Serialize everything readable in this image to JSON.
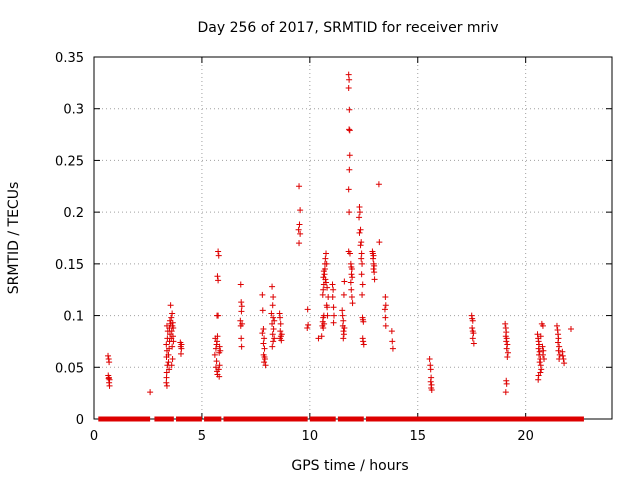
{
  "chart_data": {
    "type": "scatter",
    "title": "Day 256 of 2017, SRMTID for receiver mriv",
    "xlabel": "GPS time / hours",
    "ylabel": "SRMTID / TECUs",
    "xlim": [
      0,
      24
    ],
    "ylim": [
      0,
      0.35
    ],
    "xticks": [
      0,
      5,
      10,
      15,
      20
    ],
    "xtick_labels": [
      "0",
      "5",
      "10",
      "15",
      "20"
    ],
    "yticks": [
      0,
      0.05,
      0.1,
      0.15,
      0.2,
      0.25,
      0.3,
      0.35
    ],
    "ytick_labels": [
      "0",
      "0.05",
      "0.1",
      "0.15",
      "0.2",
      "0.25",
      "0.3",
      "0.35"
    ],
    "grid": true,
    "marker": "+",
    "color": "#dd0000",
    "zero_baseline_segments": [
      [
        0.2,
        2.6
      ],
      [
        2.8,
        3.7
      ],
      [
        3.8,
        5.0
      ],
      [
        5.1,
        5.9
      ],
      [
        6.0,
        9.9
      ],
      [
        10.0,
        11.2
      ],
      [
        11.3,
        12.5
      ],
      [
        12.6,
        22.7
      ]
    ],
    "points": [
      [
        0.65,
        0.061
      ],
      [
        0.68,
        0.058
      ],
      [
        0.7,
        0.055
      ],
      [
        0.66,
        0.042
      ],
      [
        0.69,
        0.04
      ],
      [
        0.72,
        0.038
      ],
      [
        0.7,
        0.035
      ],
      [
        0.72,
        0.032
      ],
      [
        0.68,
        0.039
      ],
      [
        2.6,
        0.026
      ],
      [
        3.35,
        0.035
      ],
      [
        3.38,
        0.032
      ],
      [
        3.36,
        0.04
      ],
      [
        3.37,
        0.045
      ],
      [
        3.4,
        0.052
      ],
      [
        3.36,
        0.06
      ],
      [
        3.38,
        0.066
      ],
      [
        3.35,
        0.072
      ],
      [
        3.4,
        0.078
      ],
      [
        3.42,
        0.085
      ],
      [
        3.38,
        0.09
      ],
      [
        3.45,
        0.062
      ],
      [
        3.48,
        0.068
      ],
      [
        3.5,
        0.075
      ],
      [
        3.52,
        0.082
      ],
      [
        3.5,
        0.088
      ],
      [
        3.55,
        0.092
      ],
      [
        3.52,
        0.095
      ],
      [
        3.58,
        0.078
      ],
      [
        3.6,
        0.085
      ],
      [
        3.55,
        0.11
      ],
      [
        3.62,
        0.102
      ],
      [
        3.58,
        0.098
      ],
      [
        3.63,
        0.09
      ],
      [
        3.65,
        0.093
      ],
      [
        3.67,
        0.088
      ],
      [
        3.62,
        0.07
      ],
      [
        3.64,
        0.058
      ],
      [
        3.6,
        0.052
      ],
      [
        3.48,
        0.048
      ],
      [
        3.45,
        0.055
      ],
      [
        3.66,
        0.08
      ],
      [
        3.68,
        0.075
      ],
      [
        4.0,
        0.074
      ],
      [
        4.02,
        0.07
      ],
      [
        4.05,
        0.068
      ],
      [
        4.03,
        0.063
      ],
      [
        4.05,
        0.072
      ],
      [
        5.6,
        0.062
      ],
      [
        5.65,
        0.068
      ],
      [
        5.68,
        0.072
      ],
      [
        5.62,
        0.078
      ],
      [
        5.7,
        0.075
      ],
      [
        5.72,
        0.08
      ],
      [
        5.7,
        0.1
      ],
      [
        5.75,
        0.1
      ],
      [
        5.72,
        0.138
      ],
      [
        5.75,
        0.134
      ],
      [
        5.78,
        0.158
      ],
      [
        5.75,
        0.162
      ],
      [
        5.65,
        0.05
      ],
      [
        5.7,
        0.046
      ],
      [
        5.72,
        0.043
      ],
      [
        5.78,
        0.048
      ],
      [
        5.8,
        0.041
      ],
      [
        5.82,
        0.052
      ],
      [
        5.8,
        0.064
      ],
      [
        5.85,
        0.066
      ],
      [
        5.68,
        0.056
      ],
      [
        5.82,
        0.07
      ],
      [
        6.8,
        0.13
      ],
      [
        6.82,
        0.113
      ],
      [
        6.85,
        0.109
      ],
      [
        6.83,
        0.104
      ],
      [
        6.78,
        0.095
      ],
      [
        6.8,
        0.09
      ],
      [
        6.86,
        0.092
      ],
      [
        6.82,
        0.078
      ],
      [
        6.84,
        0.07
      ],
      [
        7.8,
        0.12
      ],
      [
        7.82,
        0.105
      ],
      [
        7.85,
        0.087
      ],
      [
        7.8,
        0.083
      ],
      [
        7.88,
        0.078
      ],
      [
        7.85,
        0.073
      ],
      [
        7.9,
        0.068
      ],
      [
        7.86,
        0.062
      ],
      [
        7.92,
        0.058
      ],
      [
        7.88,
        0.055
      ],
      [
        7.95,
        0.052
      ],
      [
        7.9,
        0.06
      ],
      [
        8.25,
        0.128
      ],
      [
        8.3,
        0.118
      ],
      [
        8.28,
        0.11
      ],
      [
        8.22,
        0.102
      ],
      [
        8.3,
        0.098
      ],
      [
        8.25,
        0.092
      ],
      [
        8.32,
        0.087
      ],
      [
        8.28,
        0.082
      ],
      [
        8.35,
        0.078
      ],
      [
        8.3,
        0.075
      ],
      [
        8.26,
        0.07
      ],
      [
        8.35,
        0.095
      ],
      [
        8.6,
        0.102
      ],
      [
        8.62,
        0.098
      ],
      [
        8.65,
        0.092
      ],
      [
        8.63,
        0.085
      ],
      [
        8.66,
        0.08
      ],
      [
        8.68,
        0.076
      ],
      [
        8.62,
        0.078
      ],
      [
        8.7,
        0.082
      ],
      [
        9.5,
        0.225
      ],
      [
        9.55,
        0.202
      ],
      [
        9.52,
        0.188
      ],
      [
        9.48,
        0.183
      ],
      [
        9.55,
        0.179
      ],
      [
        9.5,
        0.17
      ],
      [
        9.9,
        0.106
      ],
      [
        9.92,
        0.091
      ],
      [
        9.88,
        0.088
      ],
      [
        10.4,
        0.078
      ],
      [
        10.55,
        0.08
      ],
      [
        10.58,
        0.09
      ],
      [
        10.6,
        0.094
      ],
      [
        10.62,
        0.098
      ],
      [
        10.65,
        0.1
      ],
      [
        10.62,
        0.088
      ],
      [
        10.66,
        0.092
      ],
      [
        10.6,
        0.12
      ],
      [
        10.62,
        0.125
      ],
      [
        10.65,
        0.13
      ],
      [
        10.63,
        0.137
      ],
      [
        10.68,
        0.14
      ],
      [
        10.65,
        0.143
      ],
      [
        10.7,
        0.15
      ],
      [
        10.72,
        0.155
      ],
      [
        10.75,
        0.16
      ],
      [
        10.7,
        0.145
      ],
      [
        10.72,
        0.135
      ],
      [
        10.78,
        0.15
      ],
      [
        10.75,
        0.132
      ],
      [
        10.8,
        0.127
      ],
      [
        10.78,
        0.11
      ],
      [
        10.82,
        0.1
      ],
      [
        10.8,
        0.108
      ],
      [
        10.85,
        0.118
      ],
      [
        11.05,
        0.13
      ],
      [
        11.08,
        0.125
      ],
      [
        11.06,
        0.118
      ],
      [
        11.1,
        0.108
      ],
      [
        11.12,
        0.1
      ],
      [
        11.1,
        0.093
      ],
      [
        11.5,
        0.105
      ],
      [
        11.52,
        0.1
      ],
      [
        11.55,
        0.095
      ],
      [
        11.53,
        0.09
      ],
      [
        11.56,
        0.085
      ],
      [
        11.58,
        0.082
      ],
      [
        11.55,
        0.078
      ],
      [
        11.6,
        0.088
      ],
      [
        11.58,
        0.12
      ],
      [
        11.6,
        0.133
      ],
      [
        11.8,
        0.333
      ],
      [
        11.82,
        0.328
      ],
      [
        11.8,
        0.32
      ],
      [
        11.83,
        0.299
      ],
      [
        11.82,
        0.28
      ],
      [
        11.85,
        0.279
      ],
      [
        11.85,
        0.255
      ],
      [
        11.83,
        0.241
      ],
      [
        11.8,
        0.222
      ],
      [
        11.82,
        0.2
      ],
      [
        11.86,
        0.16
      ],
      [
        11.8,
        0.162
      ],
      [
        11.9,
        0.15
      ],
      [
        11.92,
        0.147
      ],
      [
        11.95,
        0.145
      ],
      [
        11.93,
        0.14
      ],
      [
        11.96,
        0.137
      ],
      [
        11.9,
        0.132
      ],
      [
        11.92,
        0.125
      ],
      [
        11.95,
        0.118
      ],
      [
        11.98,
        0.112
      ],
      [
        12.3,
        0.205
      ],
      [
        12.32,
        0.2
      ],
      [
        12.28,
        0.195
      ],
      [
        12.35,
        0.183
      ],
      [
        12.3,
        0.18
      ],
      [
        12.38,
        0.171
      ],
      [
        12.35,
        0.168
      ],
      [
        12.4,
        0.16
      ],
      [
        12.38,
        0.155
      ],
      [
        12.42,
        0.15
      ],
      [
        12.4,
        0.14
      ],
      [
        12.45,
        0.13
      ],
      [
        12.42,
        0.12
      ],
      [
        12.44,
        0.098
      ],
      [
        12.46,
        0.096
      ],
      [
        12.48,
        0.094
      ],
      [
        12.45,
        0.078
      ],
      [
        12.47,
        0.075
      ],
      [
        12.5,
        0.072
      ],
      [
        12.9,
        0.162
      ],
      [
        12.92,
        0.16
      ],
      [
        12.95,
        0.158
      ],
      [
        12.93,
        0.155
      ],
      [
        12.96,
        0.15
      ],
      [
        12.98,
        0.148
      ],
      [
        12.95,
        0.145
      ],
      [
        12.98,
        0.142
      ],
      [
        13.0,
        0.135
      ],
      [
        13.2,
        0.227
      ],
      [
        13.22,
        0.171
      ],
      [
        13.5,
        0.118
      ],
      [
        13.52,
        0.11
      ],
      [
        13.48,
        0.106
      ],
      [
        13.5,
        0.098
      ],
      [
        13.52,
        0.09
      ],
      [
        13.8,
        0.085
      ],
      [
        13.82,
        0.075
      ],
      [
        13.85,
        0.068
      ],
      [
        15.55,
        0.058
      ],
      [
        15.58,
        0.052
      ],
      [
        15.6,
        0.048
      ],
      [
        15.62,
        0.04
      ],
      [
        15.6,
        0.036
      ],
      [
        15.64,
        0.033
      ],
      [
        15.62,
        0.03
      ],
      [
        15.65,
        0.028
      ],
      [
        17.5,
        0.1
      ],
      [
        17.52,
        0.097
      ],
      [
        17.55,
        0.095
      ],
      [
        17.52,
        0.088
      ],
      [
        17.55,
        0.085
      ],
      [
        17.58,
        0.083
      ],
      [
        17.55,
        0.078
      ],
      [
        17.6,
        0.073
      ],
      [
        19.05,
        0.092
      ],
      [
        19.08,
        0.088
      ],
      [
        19.1,
        0.084
      ],
      [
        19.08,
        0.08
      ],
      [
        19.12,
        0.078
      ],
      [
        19.1,
        0.075
      ],
      [
        19.15,
        0.072
      ],
      [
        19.12,
        0.068
      ],
      [
        19.18,
        0.064
      ],
      [
        19.15,
        0.06
      ],
      [
        19.1,
        0.037
      ],
      [
        19.12,
        0.034
      ],
      [
        19.08,
        0.026
      ],
      [
        20.55,
        0.082
      ],
      [
        20.58,
        0.078
      ],
      [
        20.6,
        0.075
      ],
      [
        20.62,
        0.072
      ],
      [
        20.6,
        0.068
      ],
      [
        20.65,
        0.065
      ],
      [
        20.62,
        0.062
      ],
      [
        20.68,
        0.058
      ],
      [
        20.65,
        0.055
      ],
      [
        20.7,
        0.052
      ],
      [
        20.72,
        0.048
      ],
      [
        20.68,
        0.045
      ],
      [
        20.6,
        0.042
      ],
      [
        20.58,
        0.038
      ],
      [
        20.75,
        0.092
      ],
      [
        20.8,
        0.09
      ],
      [
        20.78,
        0.07
      ],
      [
        20.82,
        0.066
      ],
      [
        20.8,
        0.062
      ],
      [
        20.85,
        0.058
      ],
      [
        20.7,
        0.08
      ],
      [
        21.45,
        0.09
      ],
      [
        21.48,
        0.086
      ],
      [
        21.5,
        0.082
      ],
      [
        21.52,
        0.078
      ],
      [
        21.5,
        0.074
      ],
      [
        21.55,
        0.07
      ],
      [
        21.52,
        0.066
      ],
      [
        21.58,
        0.062
      ],
      [
        21.55,
        0.058
      ],
      [
        21.7,
        0.065
      ],
      [
        21.72,
        0.061
      ],
      [
        21.75,
        0.058
      ],
      [
        21.78,
        0.054
      ],
      [
        22.1,
        0.087
      ]
    ]
  }
}
